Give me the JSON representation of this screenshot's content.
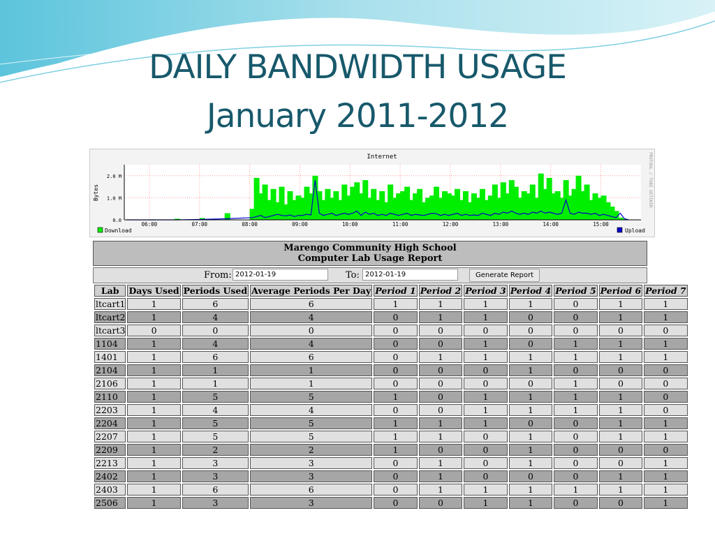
{
  "slide": {
    "title_line1": "DAILY BANDWIDTH USAGE",
    "title_line2": "January 2011-2012"
  },
  "graph": {
    "title": "Internet",
    "ylabel": "Bytes",
    "yticks": [
      "0.0",
      "1.0 M",
      "2.0 M"
    ],
    "xticks": [
      "06:00",
      "07:00",
      "08:00",
      "09:00",
      "10:00",
      "11:00",
      "12:00",
      "13:00",
      "14:00",
      "15:00"
    ],
    "legend_download": "Download",
    "legend_upload": "Upload",
    "side_text": "PROTOOL / TOBI OETIKER",
    "download_color": "#00ee00",
    "upload_color": "#0000cc"
  },
  "chart_data": {
    "type": "area",
    "title": "Internet",
    "ylabel": "Bytes",
    "xlabel": "",
    "x": [
      "05:30",
      "06:00",
      "06:30",
      "07:00",
      "07:30",
      "08:00",
      "08:05",
      "08:10",
      "08:15",
      "08:20",
      "08:25",
      "08:30",
      "08:35",
      "08:40",
      "08:45",
      "08:50",
      "08:55",
      "09:00",
      "09:05",
      "09:10",
      "09:15",
      "09:20",
      "09:25",
      "09:30",
      "09:35",
      "09:40",
      "09:45",
      "09:50",
      "09:55",
      "10:00",
      "10:05",
      "10:10",
      "10:15",
      "10:20",
      "10:25",
      "10:30",
      "10:35",
      "10:40",
      "10:45",
      "10:50",
      "10:55",
      "11:00",
      "11:05",
      "11:10",
      "11:15",
      "11:20",
      "11:25",
      "11:30",
      "11:35",
      "11:40",
      "11:45",
      "11:50",
      "11:55",
      "12:00",
      "12:05",
      "12:10",
      "12:15",
      "12:20",
      "12:25",
      "12:30",
      "12:35",
      "12:40",
      "12:45",
      "12:50",
      "12:55",
      "13:00",
      "13:05",
      "13:10",
      "13:15",
      "13:20",
      "13:25",
      "13:30",
      "13:35",
      "13:40",
      "13:45",
      "13:50",
      "13:55",
      "14:00",
      "14:05",
      "14:10",
      "14:15",
      "14:20",
      "14:25",
      "14:30",
      "14:35",
      "14:40",
      "14:45",
      "14:50",
      "14:55",
      "15:00",
      "15:05",
      "15:10",
      "15:15",
      "15:20",
      "15:25",
      "15:30"
    ],
    "series": [
      {
        "name": "Download",
        "values": [
          0.0,
          0.02,
          0.05,
          0.08,
          0.3,
          0.5,
          1.9,
          1.2,
          1.6,
          0.9,
          1.4,
          0.8,
          1.5,
          0.7,
          1.3,
          0.9,
          1.1,
          1.0,
          1.5,
          1.2,
          2.0,
          1.3,
          0.9,
          1.4,
          1.0,
          1.3,
          0.9,
          1.6,
          1.1,
          1.5,
          1.7,
          1.2,
          1.8,
          1.0,
          1.4,
          0.9,
          1.3,
          0.8,
          1.6,
          1.0,
          1.2,
          1.3,
          1.5,
          0.9,
          1.2,
          1.4,
          0.8,
          1.0,
          1.1,
          1.5,
          1.0,
          1.3,
          1.2,
          1.1,
          1.4,
          0.9,
          1.3,
          0.8,
          1.2,
          1.0,
          1.4,
          0.9,
          1.1,
          1.6,
          1.0,
          1.7,
          1.2,
          1.8,
          1.5,
          1.0,
          1.3,
          1.2,
          1.6,
          1.0,
          2.1,
          1.4,
          1.9,
          1.2,
          1.3,
          1.0,
          1.8,
          1.1,
          1.4,
          2.0,
          1.3,
          1.6,
          0.9,
          1.2,
          1.0,
          1.1,
          0.8,
          0.6,
          0.4,
          0.1,
          0.05,
          0.0
        ]
      },
      {
        "name": "Upload",
        "values": [
          0.0,
          0.0,
          0.0,
          0.02,
          0.05,
          0.1,
          0.15,
          0.2,
          0.1,
          0.15,
          0.2,
          0.25,
          0.2,
          0.18,
          0.22,
          0.15,
          0.2,
          0.2,
          0.25,
          0.22,
          1.8,
          0.3,
          0.2,
          0.25,
          0.3,
          0.2,
          0.25,
          0.3,
          0.25,
          0.3,
          0.4,
          0.2,
          0.35,
          0.25,
          0.3,
          0.2,
          0.25,
          0.2,
          0.3,
          0.25,
          0.2,
          0.25,
          0.3,
          0.2,
          0.25,
          0.22,
          0.2,
          0.25,
          0.3,
          0.28,
          0.2,
          0.25,
          0.2,
          0.25,
          0.3,
          0.2,
          0.25,
          0.2,
          0.22,
          0.2,
          0.3,
          0.25,
          0.2,
          0.3,
          0.25,
          0.35,
          0.3,
          0.4,
          0.3,
          0.25,
          0.3,
          0.25,
          0.35,
          0.3,
          0.4,
          0.3,
          0.35,
          0.3,
          0.25,
          0.3,
          0.9,
          0.3,
          0.25,
          0.35,
          0.3,
          0.3,
          0.25,
          0.3,
          0.2,
          0.25,
          0.2,
          0.15,
          0.1,
          0.3,
          0.05,
          0.0
        ]
      }
    ],
    "yticks": [
      "0.0",
      "1.0 M",
      "2.0 M"
    ],
    "ylim": [
      0,
      2.5
    ],
    "ylim_units": "M bytes",
    "grid": true,
    "legend": [
      "bottom-left: Download",
      "bottom-right: Upload"
    ]
  },
  "report": {
    "school": "Marengo Community High School",
    "subtitle": "Computer Lab Usage Report",
    "from_label": "From:",
    "from_value": "2012-01-19",
    "to_label": "To:",
    "to_value": "2012-01-19",
    "generate_label": "Generate Report",
    "columns": [
      "Lab",
      "Days Used",
      "Periods Used",
      "Average Periods Per Day",
      "Period 1",
      "Period 2",
      "Period 3",
      "Period 4",
      "Period 5",
      "Period 6",
      "Period 7"
    ],
    "rows": [
      [
        "ltcart1",
        "1",
        "6",
        "6",
        "1",
        "1",
        "1",
        "1",
        "0",
        "1",
        "1"
      ],
      [
        "ltcart2",
        "1",
        "4",
        "4",
        "0",
        "1",
        "1",
        "0",
        "0",
        "1",
        "1"
      ],
      [
        "ltcart3",
        "0",
        "0",
        "0",
        "0",
        "0",
        "0",
        "0",
        "0",
        "0",
        "0"
      ],
      [
        "1104",
        "1",
        "4",
        "4",
        "0",
        "0",
        "1",
        "0",
        "1",
        "1",
        "1"
      ],
      [
        "1401",
        "1",
        "6",
        "6",
        "0",
        "1",
        "1",
        "1",
        "1",
        "1",
        "1"
      ],
      [
        "2104",
        "1",
        "1",
        "1",
        "0",
        "0",
        "0",
        "1",
        "0",
        "0",
        "0"
      ],
      [
        "2106",
        "1",
        "1",
        "1",
        "0",
        "0",
        "0",
        "0",
        "1",
        "0",
        "0"
      ],
      [
        "2110",
        "1",
        "5",
        "5",
        "1",
        "0",
        "1",
        "1",
        "1",
        "1",
        "0"
      ],
      [
        "2203",
        "1",
        "4",
        "4",
        "0",
        "0",
        "1",
        "1",
        "1",
        "1",
        "0"
      ],
      [
        "2204",
        "1",
        "5",
        "5",
        "1",
        "1",
        "1",
        "0",
        "0",
        "1",
        "1"
      ],
      [
        "2207",
        "1",
        "5",
        "5",
        "1",
        "1",
        "0",
        "1",
        "0",
        "1",
        "1"
      ],
      [
        "2209",
        "1",
        "2",
        "2",
        "1",
        "0",
        "0",
        "1",
        "0",
        "0",
        "0"
      ],
      [
        "2213",
        "1",
        "3",
        "3",
        "0",
        "1",
        "0",
        "1",
        "0",
        "0",
        "1"
      ],
      [
        "2402",
        "1",
        "3",
        "3",
        "0",
        "1",
        "0",
        "0",
        "0",
        "1",
        "1"
      ],
      [
        "2403",
        "1",
        "6",
        "6",
        "0",
        "1",
        "1",
        "1",
        "1",
        "1",
        "1"
      ],
      [
        "2506",
        "1",
        "3",
        "3",
        "0",
        "0",
        "1",
        "1",
        "0",
        "0",
        "1"
      ]
    ]
  }
}
